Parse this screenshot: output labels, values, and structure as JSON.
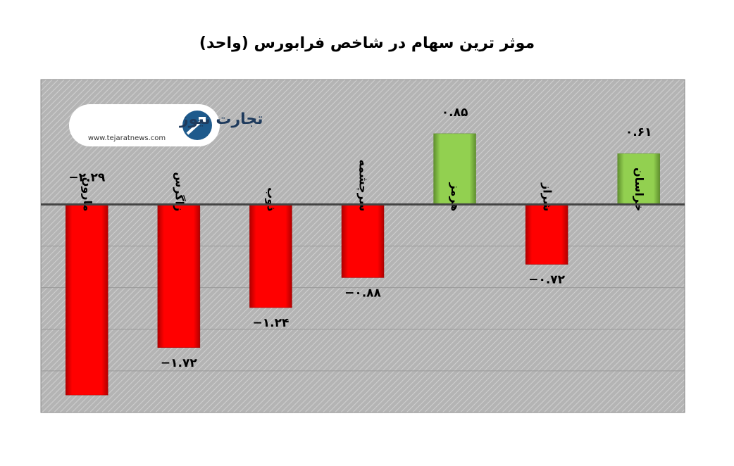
{
  "chart_data": {
    "type": "bar",
    "title": "موثر ترین سهام در شاخص فرابورس (واحد)",
    "logo": {
      "name": "تجارت نیوز",
      "url": "www.tejaratnews.com"
    },
    "categories": [
      "مارون",
      "زاگرس",
      "ذوب",
      "سرچشمه",
      "هرمز",
      "شراز",
      "خراسان"
    ],
    "values": [
      -2.29,
      -1.72,
      -1.24,
      -0.88,
      0.85,
      -0.72,
      0.61
    ],
    "value_labels": [
      "−۲.۲۹",
      "−۱.۷۲",
      "−۱.۲۴",
      "−۰.۸۸",
      "۰.۸۵",
      "−۰.۷۲",
      "۰.۶۱"
    ],
    "colors": {
      "negative": "#ff0000",
      "positive": "#92d050"
    },
    "ylim": [
      -2.5,
      1.5
    ],
    "yticks": [
      -2,
      -1.5,
      -1,
      -0.5,
      0
    ],
    "grid": true
  }
}
